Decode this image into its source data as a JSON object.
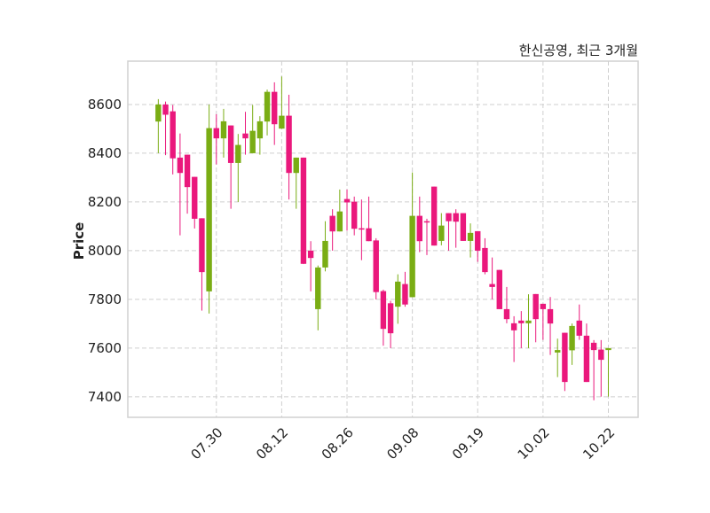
{
  "chart_data": {
    "type": "candlestick",
    "title": "한신공영, 최근 3개월",
    "xlabel": "",
    "ylabel": "Price",
    "ylim": [
      7316,
      8778
    ],
    "xlim": [
      -4.2,
      66.1
    ],
    "grid": true,
    "yticks": [
      7400,
      7600,
      7800,
      8000,
      8200,
      8400,
      8600
    ],
    "xticks": [
      {
        "index": 8,
        "label": "07.30"
      },
      {
        "index": 17,
        "label": "08.12"
      },
      {
        "index": 26,
        "label": "08.26"
      },
      {
        "index": 35,
        "label": "09.08"
      },
      {
        "index": 44,
        "label": "09.19"
      },
      {
        "index": 53,
        "label": "10.02"
      },
      {
        "index": 62,
        "label": "10.22"
      }
    ],
    "colors": {
      "up": "#7aad14",
      "down": "#ea187c"
    },
    "ohlc_fields": [
      "open",
      "high",
      "low",
      "close"
    ],
    "candles": [
      [
        8530,
        8622,
        8400,
        8600
      ],
      [
        8600,
        8612,
        8392,
        8558
      ],
      [
        8572,
        8598,
        8313,
        8379
      ],
      [
        8382,
        8481,
        8063,
        8319
      ],
      [
        8394,
        8394,
        8152,
        8261
      ],
      [
        8303,
        8303,
        8091,
        8131
      ],
      [
        8133,
        8133,
        7754,
        7912
      ],
      [
        7833,
        8600,
        7742,
        8503
      ],
      [
        8503,
        8560,
        8354,
        8461
      ],
      [
        8461,
        8582,
        8382,
        8531
      ],
      [
        8514,
        8514,
        8172,
        8360
      ],
      [
        8360,
        8479,
        8200,
        8434
      ],
      [
        8481,
        8570,
        8394,
        8461
      ],
      [
        8400,
        8598,
        8400,
        8492
      ],
      [
        8461,
        8552,
        8394,
        8531
      ],
      [
        8530,
        8661,
        8473,
        8652
      ],
      [
        8652,
        8691,
        8434,
        8519
      ],
      [
        8501,
        8715,
        8500,
        8554
      ],
      [
        8554,
        8640,
        8210,
        8319
      ],
      [
        8319,
        8382,
        8172,
        8382
      ],
      [
        8382,
        8382,
        7945,
        7946
      ],
      [
        8000,
        8039,
        7833,
        7970
      ],
      [
        7760,
        7939,
        7673,
        7931
      ],
      [
        7931,
        8121,
        7915,
        8040
      ],
      [
        8143,
        8170,
        8000,
        8079
      ],
      [
        8079,
        8251,
        8079,
        8161
      ],
      [
        8212,
        8251,
        8082,
        8198
      ],
      [
        8201,
        8222,
        8063,
        8090
      ],
      [
        8092,
        8210,
        7961,
        8090
      ],
      [
        8092,
        8222,
        8039,
        8039
      ],
      [
        8042,
        8051,
        7800,
        7830
      ],
      [
        7834,
        7840,
        7610,
        7679
      ],
      [
        7784,
        7794,
        7600,
        7661
      ],
      [
        7770,
        7903,
        7700,
        7873
      ],
      [
        7863,
        7913,
        7770,
        7779
      ],
      [
        7809,
        8321,
        7809,
        8143
      ],
      [
        8143,
        8222,
        7994,
        8039
      ],
      [
        8121,
        8131,
        7982,
        8119
      ],
      [
        8263,
        8263,
        8021,
        8021
      ],
      [
        8040,
        8154,
        8022,
        8103
      ],
      [
        8154,
        8154,
        8000,
        8121
      ],
      [
        8154,
        8170,
        8012,
        8119
      ],
      [
        8154,
        8154,
        8040,
        8040
      ],
      [
        8040,
        8112,
        7972,
        8073
      ],
      [
        8080,
        8080,
        7954,
        8000
      ],
      [
        8011,
        8051,
        7903,
        7912
      ],
      [
        7863,
        7972,
        7800,
        7851
      ],
      [
        7921,
        7921,
        7760,
        7760
      ],
      [
        7760,
        7851,
        7702,
        7719
      ],
      [
        7702,
        7731,
        7543,
        7673
      ],
      [
        7713,
        7752,
        7600,
        7702
      ],
      [
        7702,
        7821,
        7600,
        7713
      ],
      [
        7822,
        7822,
        7624,
        7719
      ],
      [
        7782,
        7782,
        7634,
        7760
      ],
      [
        7760,
        7810,
        7572,
        7701
      ],
      [
        7582,
        7639,
        7481,
        7592
      ],
      [
        7663,
        7663,
        7424,
        7461
      ],
      [
        7591,
        7701,
        7531,
        7691
      ],
      [
        7713,
        7779,
        7634,
        7651
      ],
      [
        7651,
        7701,
        7461,
        7461
      ],
      [
        7622,
        7633,
        7386,
        7592
      ],
      [
        7594,
        7633,
        7401,
        7552
      ],
      [
        7592,
        7600,
        7401,
        7600
      ]
    ]
  }
}
